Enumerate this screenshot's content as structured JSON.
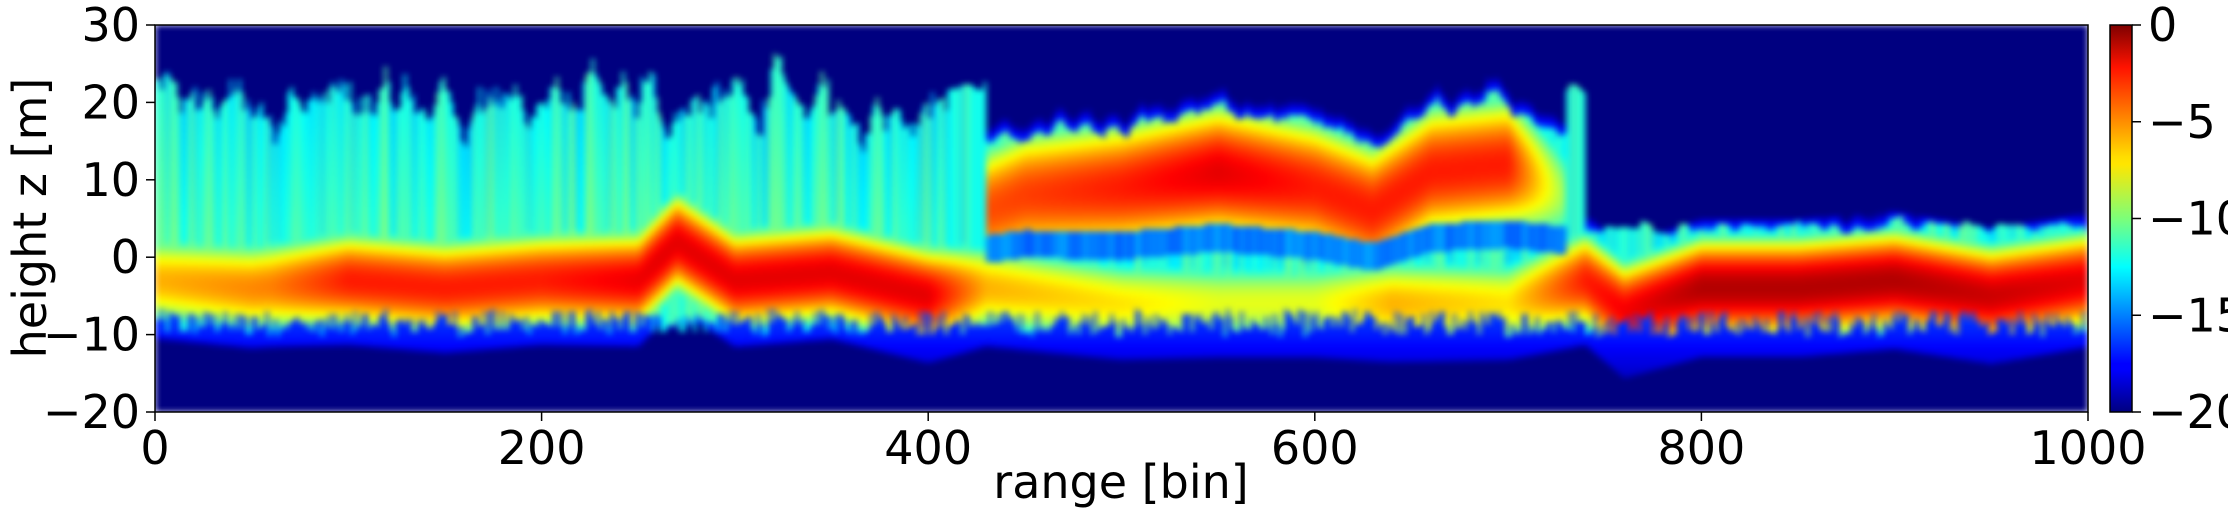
{
  "chart_data": {
    "type": "heatmap",
    "title": "",
    "xlabel": "range [bin]",
    "ylabel": "height z [m]",
    "xlim": [
      0,
      1000
    ],
    "ylim": [
      -20,
      30
    ],
    "xticks": [
      0,
      200,
      400,
      600,
      800,
      1000
    ],
    "yticks": [
      -20,
      -10,
      0,
      10,
      20,
      30
    ],
    "colorbar": {
      "colormap": "jet",
      "range": [
        -20,
        0
      ],
      "ticks": [
        0,
        -5,
        -10,
        -15,
        -20
      ]
    },
    "tick_labels": {
      "x": [
        "0",
        "200",
        "400",
        "600",
        "800",
        "1000"
      ],
      "y": [
        "−20",
        "−10",
        "0",
        "10",
        "20",
        "30"
      ],
      "colorbar": [
        "0",
        "−5",
        "−10",
        "−15",
        "−20"
      ]
    },
    "ground_ridge": [
      {
        "x": 0,
        "z": -3
      },
      {
        "x": 50,
        "z": -4
      },
      {
        "x": 100,
        "z": -3
      },
      {
        "x": 150,
        "z": -4
      },
      {
        "x": 200,
        "z": -3
      },
      {
        "x": 250,
        "z": -3
      },
      {
        "x": 270,
        "z": 2
      },
      {
        "x": 300,
        "z": -3
      },
      {
        "x": 350,
        "z": -2
      },
      {
        "x": 400,
        "z": -5
      },
      {
        "x": 430,
        "z": -4
      },
      {
        "x": 500,
        "z": -6
      },
      {
        "x": 600,
        "z": -6
      },
      {
        "x": 700,
        "z": -6
      },
      {
        "x": 740,
        "z": -3
      },
      {
        "x": 760,
        "z": -7
      },
      {
        "x": 800,
        "z": -4
      },
      {
        "x": 850,
        "z": -4
      },
      {
        "x": 900,
        "z": -3
      },
      {
        "x": 950,
        "z": -5
      },
      {
        "x": 1000,
        "z": -3
      }
    ],
    "canopy_ridge": [
      {
        "x": 430,
        "z": 6
      },
      {
        "x": 450,
        "z": 8
      },
      {
        "x": 500,
        "z": 9
      },
      {
        "x": 550,
        "z": 11
      },
      {
        "x": 600,
        "z": 9
      },
      {
        "x": 630,
        "z": 6
      },
      {
        "x": 660,
        "z": 11
      },
      {
        "x": 700,
        "z": 12
      },
      {
        "x": 730,
        "z": 8
      }
    ],
    "peak_level_db": [
      {
        "x": 0,
        "ground": -6,
        "canopy": -9
      },
      {
        "x": 60,
        "ground": -5,
        "canopy": -8
      },
      {
        "x": 100,
        "ground": -3,
        "canopy": -11
      },
      {
        "x": 160,
        "ground": -3,
        "canopy": -9
      },
      {
        "x": 200,
        "ground": -3,
        "canopy": -12
      },
      {
        "x": 260,
        "ground": -2,
        "canopy": -12
      },
      {
        "x": 300,
        "ground": -2,
        "canopy": -13
      },
      {
        "x": 400,
        "ground": -2,
        "canopy": -13
      },
      {
        "x": 430,
        "ground": -6,
        "canopy": -4
      },
      {
        "x": 500,
        "ground": -7,
        "canopy": -3
      },
      {
        "x": 550,
        "ground": -8,
        "canopy": -2
      },
      {
        "x": 600,
        "ground": -8,
        "canopy": -3
      },
      {
        "x": 640,
        "ground": -6,
        "canopy": -3
      },
      {
        "x": 700,
        "ground": -7,
        "canopy": -3
      },
      {
        "x": 740,
        "ground": -3,
        "canopy": -12
      },
      {
        "x": 800,
        "ground": -1,
        "canopy": -17
      },
      {
        "x": 900,
        "ground": -1,
        "canopy": -18
      },
      {
        "x": 1000,
        "ground": -2,
        "canopy": -18
      }
    ]
  }
}
